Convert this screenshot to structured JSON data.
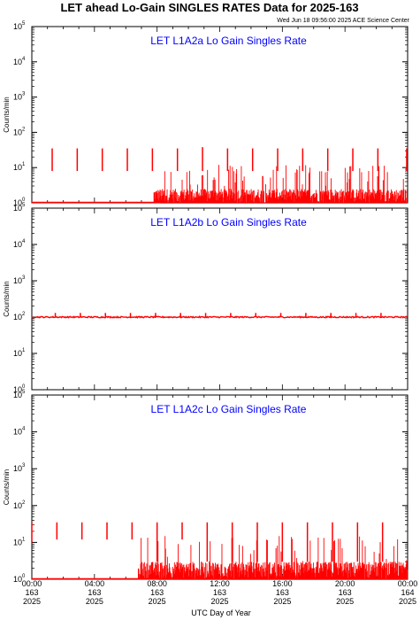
{
  "title": "LET ahead Lo-Gain SINGLES RATES Data for 2025-163",
  "timestamp": "Wed Jun 18 09:56:00 2025 ACE Science Center",
  "colors": {
    "series": "#ff0000",
    "panel_label": "#0000ff",
    "axes": "#000000"
  },
  "chart_data": [
    {
      "type": "line",
      "panel_label": "LET L1A2a Lo Gain Singles Rate",
      "ylabel": "Counts/min",
      "yscale": "log",
      "ylim": [
        1,
        100000
      ],
      "xlim": [
        0,
        24
      ],
      "y_ticks": [
        "10^0",
        "10^1",
        "10^2",
        "10^3",
        "10^4",
        "10^5"
      ],
      "baseline": {
        "level": 1,
        "x_start": 0,
        "x_end": 8.2
      },
      "noise": {
        "x_start": 7.8,
        "x_end": 24,
        "typical_max": 2.5,
        "occasional_max": 12,
        "occasional_rate": 0.12
      },
      "spikes": [
        {
          "x": 1.3,
          "y_low": 8,
          "y_high": 35
        },
        {
          "x": 2.9,
          "y_low": 8,
          "y_high": 35
        },
        {
          "x": 4.5,
          "y_low": 8,
          "y_high": 35
        },
        {
          "x": 6.1,
          "y_low": 8,
          "y_high": 35
        },
        {
          "x": 7.7,
          "y_low": 8,
          "y_high": 35
        },
        {
          "x": 9.3,
          "y_low": 8,
          "y_high": 35
        },
        {
          "x": 10.9,
          "y_low": 8,
          "y_high": 38
        },
        {
          "x": 12.5,
          "y_low": 8,
          "y_high": 35
        },
        {
          "x": 14.1,
          "y_low": 8,
          "y_high": 35
        },
        {
          "x": 15.7,
          "y_low": 8,
          "y_high": 35
        },
        {
          "x": 17.3,
          "y_low": 8,
          "y_high": 35
        },
        {
          "x": 18.9,
          "y_low": 8,
          "y_high": 35
        },
        {
          "x": 20.5,
          "y_low": 8,
          "y_high": 35
        },
        {
          "x": 22.1,
          "y_low": 8,
          "y_high": 35
        },
        {
          "x": 23.95,
          "y_low": 8,
          "y_high": 35
        }
      ]
    },
    {
      "type": "line",
      "panel_label": "LET L1A2b Lo Gain Singles Rate",
      "ylabel": "Counts/min",
      "yscale": "log",
      "ylim": [
        1,
        100000
      ],
      "xlim": [
        0,
        24
      ],
      "y_ticks": [
        "10^0",
        "10^1",
        "10^2",
        "10^3",
        "10^4",
        "10^5"
      ],
      "level": 100,
      "level_jitter": 0.08,
      "spikes": [
        {
          "x": 1.5,
          "y_low": 100,
          "y_high": 130
        },
        {
          "x": 3.1,
          "y_low": 100,
          "y_high": 130
        },
        {
          "x": 4.7,
          "y_low": 100,
          "y_high": 130
        },
        {
          "x": 6.3,
          "y_low": 100,
          "y_high": 130
        },
        {
          "x": 7.9,
          "y_low": 100,
          "y_high": 130
        },
        {
          "x": 9.5,
          "y_low": 100,
          "y_high": 130
        },
        {
          "x": 11.1,
          "y_low": 100,
          "y_high": 130
        },
        {
          "x": 12.7,
          "y_low": 100,
          "y_high": 130
        },
        {
          "x": 14.3,
          "y_low": 100,
          "y_high": 130
        },
        {
          "x": 15.9,
          "y_low": 100,
          "y_high": 130
        },
        {
          "x": 17.5,
          "y_low": 100,
          "y_high": 130
        },
        {
          "x": 19.1,
          "y_low": 100,
          "y_high": 130
        },
        {
          "x": 20.7,
          "y_low": 100,
          "y_high": 130
        },
        {
          "x": 22.3,
          "y_low": 100,
          "y_high": 130
        }
      ]
    },
    {
      "type": "line",
      "panel_label": "LET L1A2c Lo Gain Singles Rate",
      "ylabel": "Counts/min",
      "yscale": "log",
      "ylim": [
        1,
        100000
      ],
      "xlim": [
        0,
        24
      ],
      "y_ticks": [
        "10^0",
        "10^1",
        "10^2",
        "10^3",
        "10^4",
        "10^5"
      ],
      "baseline": {
        "level": 1,
        "x_start": 0,
        "x_end": 8.0
      },
      "noise": {
        "x_start": 6.8,
        "x_end": 24,
        "typical_max": 3.0,
        "occasional_max": 15,
        "occasional_rate": 0.1
      },
      "spikes": [
        {
          "x": 0.0,
          "y_low": 10,
          "y_high": 35
        },
        {
          "x": 1.6,
          "y_low": 12,
          "y_high": 35
        },
        {
          "x": 3.2,
          "y_low": 12,
          "y_high": 35
        },
        {
          "x": 4.8,
          "y_low": 12,
          "y_high": 35
        },
        {
          "x": 6.4,
          "y_low": 12,
          "y_high": 35
        },
        {
          "x": 8.0,
          "y_low": 3,
          "y_high": 35
        },
        {
          "x": 9.6,
          "y_low": 12,
          "y_high": 35
        },
        {
          "x": 11.2,
          "y_low": 3,
          "y_high": 35
        },
        {
          "x": 12.8,
          "y_low": 3,
          "y_high": 35
        },
        {
          "x": 14.4,
          "y_low": 3,
          "y_high": 35
        },
        {
          "x": 16.0,
          "y_low": 3,
          "y_high": 35
        },
        {
          "x": 17.6,
          "y_low": 3,
          "y_high": 35
        },
        {
          "x": 19.2,
          "y_low": 3,
          "y_high": 35
        },
        {
          "x": 20.8,
          "y_low": 3,
          "y_high": 35
        },
        {
          "x": 22.4,
          "y_low": 3,
          "y_high": 35
        }
      ]
    }
  ],
  "x_ticks": [
    {
      "hours": 0,
      "time": "00:00",
      "doy": "163",
      "year": "2025"
    },
    {
      "hours": 4,
      "time": "04:00",
      "doy": "163",
      "year": "2025"
    },
    {
      "hours": 8,
      "time": "08:00",
      "doy": "163",
      "year": "2025"
    },
    {
      "hours": 12,
      "time": "12:00",
      "doy": "163",
      "year": "2025"
    },
    {
      "hours": 16,
      "time": "16:00",
      "doy": "163",
      "year": "2025"
    },
    {
      "hours": 20,
      "time": "20:00",
      "doy": "163",
      "year": "2025"
    },
    {
      "hours": 24,
      "time": "00:00",
      "doy": "164",
      "year": "2025"
    }
  ],
  "xlabel": "UTC Day of Year"
}
